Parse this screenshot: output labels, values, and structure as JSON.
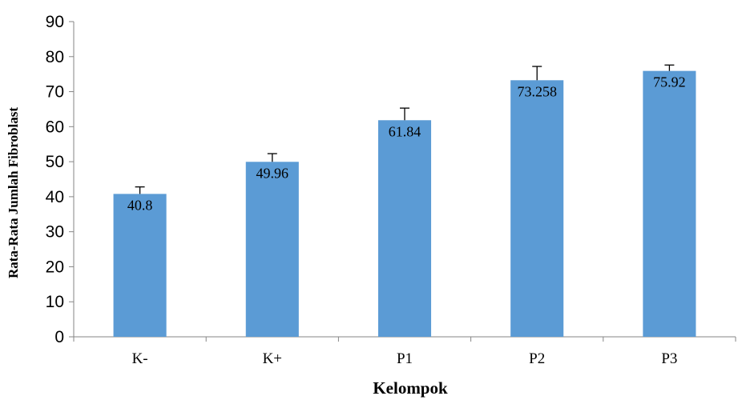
{
  "chart_data": {
    "type": "bar",
    "title": "",
    "xlabel": "Kelompok",
    "ylabel": "Rata-Rata Jumlah Fibroblast",
    "categories": [
      "K-",
      "K+",
      "P1",
      "P2",
      "P3"
    ],
    "values": [
      40.8,
      49.96,
      61.84,
      73.258,
      75.92
    ],
    "value_labels": [
      "40.8",
      "49.96",
      "61.84",
      "73.258",
      "75.92"
    ],
    "error_upper": [
      42.8,
      52.3,
      65.3,
      77.2,
      77.6
    ],
    "ylim": [
      0,
      90
    ],
    "yticks": [
      "0",
      "10",
      "20",
      "30",
      "40",
      "50",
      "60",
      "70",
      "80",
      "90"
    ],
    "bar_color": "#5B9BD5",
    "grid": false,
    "legend": "none"
  }
}
